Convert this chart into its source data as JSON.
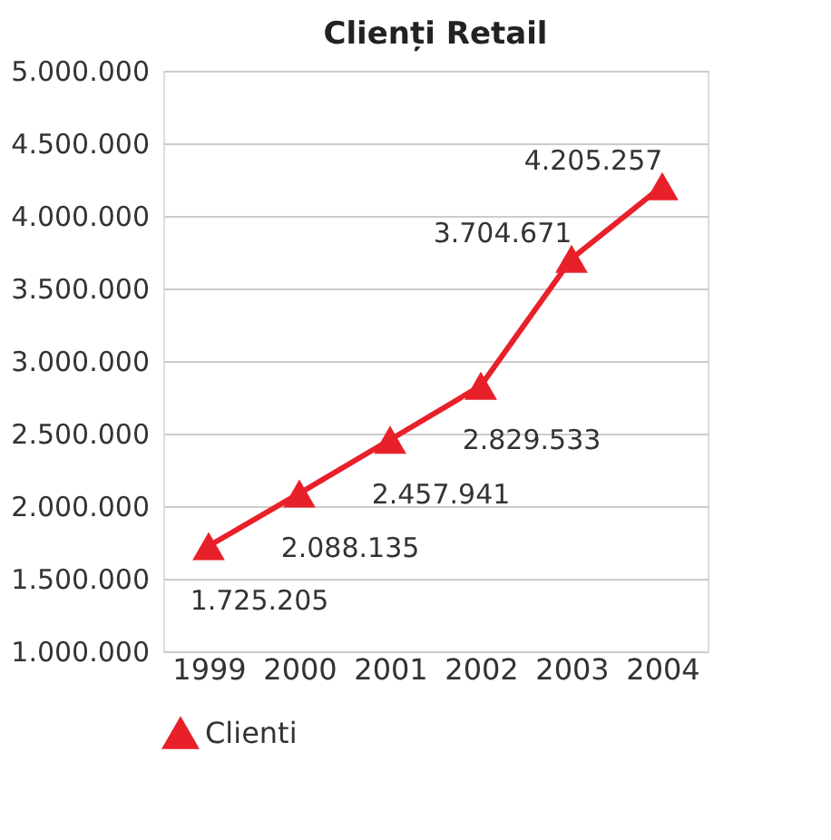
{
  "chart_data": {
    "type": "line",
    "title": "Clienți Retail",
    "categories": [
      "1999",
      "2000",
      "2001",
      "2002",
      "2003",
      "2004"
    ],
    "series": [
      {
        "name": "Clienti",
        "color": "#e8202a",
        "values": [
          1725205,
          2088135,
          2457941,
          2829533,
          3704671,
          4205257
        ],
        "value_labels": [
          "1.725.205",
          "2.088.135",
          "2.457.941",
          "2.829.533",
          "3.704.671",
          "4.205.257"
        ]
      }
    ],
    "ylim": [
      1000000,
      5000000
    ],
    "yticks": [
      {
        "value": 1000000,
        "label": "1.000.000"
      },
      {
        "value": 1500000,
        "label": "1.500.000"
      },
      {
        "value": 2000000,
        "label": "2.000.000"
      },
      {
        "value": 2500000,
        "label": "2.500.000"
      },
      {
        "value": 3000000,
        "label": "3.000.000"
      },
      {
        "value": 3500000,
        "label": "3.500.000"
      },
      {
        "value": 4000000,
        "label": "4.000.000"
      },
      {
        "value": 4500000,
        "label": "4.500.000"
      },
      {
        "value": 5000000,
        "label": "5.000.000"
      }
    ],
    "grid": "y",
    "legend": "bottom",
    "marker": "triangle",
    "line_style": "solid"
  }
}
